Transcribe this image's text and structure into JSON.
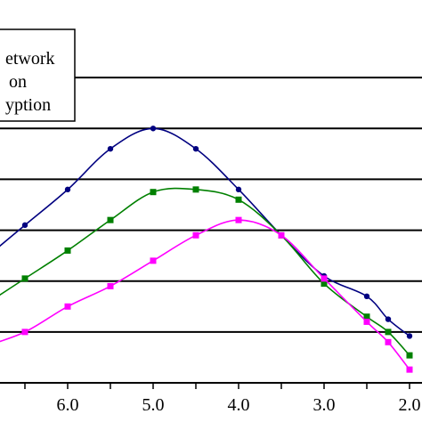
{
  "chart_data": {
    "type": "line",
    "title": "",
    "xlabel": "",
    "ylabel": "",
    "x_reversed": true,
    "xlim": [
      7.0,
      1.9
    ],
    "ylim": [
      0,
      7
    ],
    "xticks": [
      6.0,
      5.0,
      4.0,
      3.0,
      2.0
    ],
    "xtick_labels": [
      "6.0",
      "5.0",
      "4.0",
      "3.0",
      "2.0"
    ],
    "grid": {
      "horizontal": true,
      "vertical": false,
      "y_values": [
        1,
        2,
        3,
        4,
        5,
        6
      ]
    },
    "legend": {
      "placement": "top-left",
      "entries": [
        "etwork",
        "on",
        "yption"
      ]
    },
    "series": [
      {
        "color": "#000080",
        "marker": "circle",
        "x": [
          7.0,
          6.5,
          6.0,
          5.5,
          5.0,
          4.5,
          4.0,
          3.5,
          3.0,
          2.5,
          2.25,
          2.0
        ],
        "y": [
          2.4,
          3.1,
          3.8,
          4.6,
          5.0,
          4.6,
          3.8,
          2.9,
          2.1,
          1.7,
          1.25,
          0.92
        ]
      },
      {
        "color": "#008000",
        "marker": "square",
        "x": [
          7.0,
          6.5,
          6.0,
          5.5,
          5.0,
          4.5,
          4.0,
          3.5,
          3.0,
          2.5,
          2.25,
          2.0
        ],
        "y": [
          1.5,
          2.05,
          2.6,
          3.2,
          3.75,
          3.8,
          3.6,
          2.9,
          1.95,
          1.3,
          1.0,
          0.54
        ]
      },
      {
        "color": "#FF00FF",
        "marker": "square",
        "x": [
          7.0,
          6.5,
          6.0,
          5.5,
          5.0,
          4.5,
          4.0,
          3.5,
          3.0,
          2.5,
          2.25,
          2.0
        ],
        "y": [
          0.7,
          1.0,
          1.5,
          1.9,
          2.4,
          2.9,
          3.2,
          2.9,
          2.05,
          1.2,
          0.8,
          0.26
        ]
      }
    ]
  }
}
